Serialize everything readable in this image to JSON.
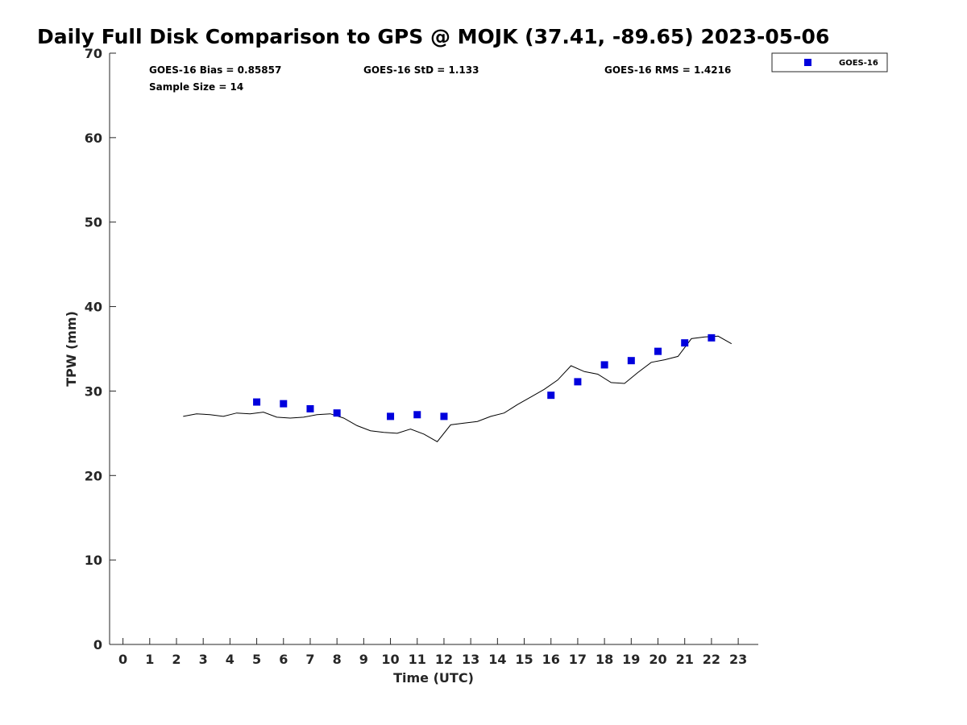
{
  "chart_data": {
    "type": "scatter",
    "title": "Daily Full Disk Comparison to GPS @ MOJK (37.41, -89.65) 2023-05-06",
    "xlabel": "Time (UTC)",
    "ylabel": "TPW (mm)",
    "xlim": [
      -0.5,
      23.75
    ],
    "ylim": [
      0,
      70
    ],
    "xticks": [
      0,
      1,
      2,
      3,
      4,
      5,
      6,
      7,
      8,
      9,
      10,
      11,
      12,
      13,
      14,
      15,
      16,
      17,
      18,
      19,
      20,
      21,
      22,
      23
    ],
    "yticks": [
      0,
      10,
      20,
      30,
      40,
      50,
      60,
      70
    ],
    "grid": false,
    "legend_position": "top-right",
    "stats": {
      "bias": "GOES-16 Bias = 0.85857",
      "std": "GOES-16 StD = 1.133",
      "rms": "GOES-16 RMS = 1.4216",
      "sample": "Sample Size = 14"
    },
    "series": [
      {
        "name": "GOES-16",
        "kind": "scatter",
        "color": "#0000dd",
        "x": [
          5,
          6,
          7,
          8,
          10,
          11,
          12,
          16,
          17,
          18,
          19,
          20,
          21,
          22
        ],
        "y": [
          28.7,
          28.5,
          27.9,
          27.4,
          27.0,
          27.2,
          27.0,
          29.5,
          31.1,
          33.1,
          33.6,
          34.7,
          35.7,
          36.3
        ]
      },
      {
        "kind": "line",
        "color": "#000000",
        "x": [
          2.25,
          2.75,
          3.25,
          3.75,
          4.25,
          4.75,
          5.25,
          5.75,
          6.25,
          6.75,
          7.25,
          7.75,
          8.25,
          8.75,
          9.25,
          9.75,
          10.25,
          10.75,
          11.25,
          11.75,
          12.25,
          12.75,
          13.25,
          13.75,
          14.25,
          14.75,
          15.25,
          15.75,
          16.25,
          16.75,
          17.25,
          17.75,
          18.25,
          18.75,
          19.25,
          19.75,
          20.25,
          20.75,
          21.25,
          21.75,
          22.25,
          22.75
        ],
        "y": [
          27.0,
          27.3,
          27.2,
          27.0,
          27.4,
          27.3,
          27.5,
          26.9,
          26.8,
          26.9,
          27.2,
          27.3,
          26.8,
          25.9,
          25.3,
          25.1,
          25.0,
          25.5,
          24.9,
          24.0,
          26.0,
          26.2,
          26.4,
          27.0,
          27.4,
          28.4,
          29.3,
          30.2,
          31.3,
          33.0,
          32.3,
          32.0,
          31.0,
          30.9,
          32.2,
          33.4,
          33.7,
          34.1,
          36.2,
          36.4,
          36.5,
          35.6
        ]
      }
    ]
  }
}
